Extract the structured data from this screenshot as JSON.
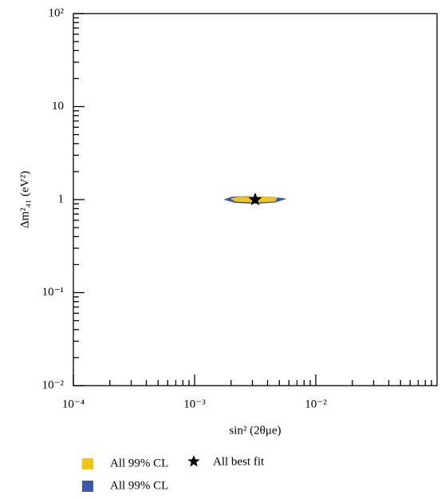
{
  "chart_data": {
    "type": "region",
    "xlabel": "sin² (2θμe)",
    "ylabel": "Δm²₄₁ (eV²)",
    "xscale": "log",
    "yscale": "log",
    "xlim": [
      0.0001,
      0.1
    ],
    "ylim": [
      0.01,
      100
    ],
    "xticks": [
      {
        "value": 0.0001,
        "label": "10⁻⁴"
      },
      {
        "value": 0.001,
        "label": "10⁻³"
      },
      {
        "value": 0.01,
        "label": "10⁻²"
      }
    ],
    "yticks": [
      {
        "value": 0.01,
        "label": "10⁻²"
      },
      {
        "value": 0.1,
        "label": "10⁻¹"
      },
      1,
      10,
      {
        "value": 100,
        "label": "10²"
      }
    ],
    "series": [
      {
        "name": "All 99% CL",
        "color": "#f2c418",
        "x": [
          0.00201,
          0.00234,
          0.00368,
          0.00476,
          0.00461,
          0.00316,
          0.00217
        ],
        "y": [
          1.02,
          1.06,
          1.08,
          1.04,
          0.96,
          0.94,
          0.96
        ]
      },
      {
        "name": "All 99% CL",
        "color": "#3a57a8",
        "x": [
          0.00178,
          0.00201,
          0.00272,
          0.00428,
          0.00562,
          0.00461,
          0.00316,
          0.00217
        ],
        "y": [
          1.0,
          1.06,
          1.08,
          1.06,
          1.02,
          0.94,
          0.91,
          0.93
        ]
      }
    ],
    "best_fit": {
      "name": "All best fit",
      "x": 0.00316,
      "y": 1.0,
      "color": "#000000"
    }
  }
}
